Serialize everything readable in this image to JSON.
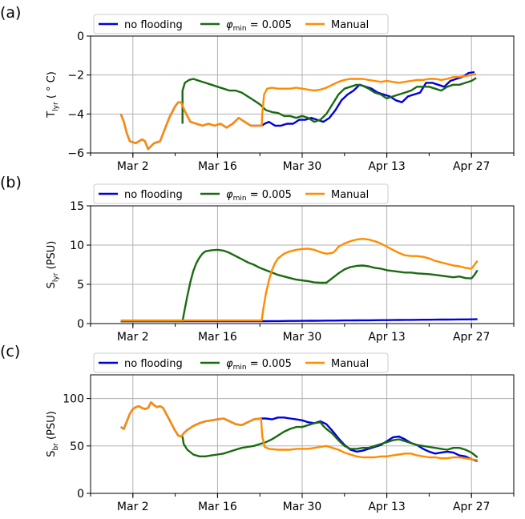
{
  "chart_data": [
    {
      "type": "line",
      "panel_label": "(a)",
      "ylabel_main": "T",
      "ylabel_sub": "lyr",
      "ylabel_tail": " ( ° C)",
      "ylim": [
        -6,
        0
      ],
      "yticks": [
        "−6",
        "−4",
        "−2",
        "0"
      ],
      "ytick_values": [
        -6,
        -4,
        -2,
        0
      ],
      "xlim": [
        "Feb 23",
        "May 4"
      ],
      "xtick_labels": [
        "Mar 2",
        "Mar 16",
        "Mar 30",
        "Apr 13",
        "Apr 27"
      ],
      "xtick_days": [
        7,
        21,
        35,
        49,
        63
      ],
      "grid": true,
      "legend": "top",
      "series": [
        {
          "name": "no flooding",
          "color": "#0000dd",
          "x": [
            1,
            2,
            3,
            4,
            5,
            6,
            7,
            8,
            9,
            10,
            11,
            12,
            13,
            14,
            15,
            16,
            17,
            18,
            19,
            20,
            21,
            22,
            23,
            24,
            25,
            26,
            27,
            28,
            29,
            30,
            31,
            32,
            33,
            34,
            35,
            36,
            37,
            38,
            39,
            40,
            41,
            42,
            43,
            44,
            45,
            46,
            47,
            48,
            49,
            50,
            51,
            52,
            53,
            54,
            55,
            56,
            57,
            58,
            59,
            60,
            61,
            62,
            63,
            64,
            65,
            66,
            67,
            68,
            69
          ],
          "y": [
            -4.0,
            -5.3,
            -5.5,
            -5.3,
            -5.8,
            -5.3,
            -4.8,
            -3.7,
            -3.4,
            -4.0,
            -4.4,
            -4.5,
            -4.6,
            -4.5,
            -4.5,
            -4.2,
            -4.3,
            -4.6,
            -4.6,
            -4.6,
            -4.5,
            -4.7,
            -4.6,
            -4.5,
            -4.4,
            -4.3,
            -4.3,
            -4.2,
            -4.5,
            -4.0,
            -3.5,
            -2.9,
            -2.6,
            -2.5,
            -2.6,
            -2.8,
            -2.9,
            -3.0,
            -3.2,
            -3.4,
            -3.3,
            -3.0,
            -2.9,
            -2.4,
            -2.3,
            -2.4,
            -2.5,
            -2.3,
            -2.1,
            -2.0,
            -1.9,
            -1.8,
            -1.8,
            -1.8,
            -1.8,
            -1.8,
            -1.8,
            -1.8,
            -1.8,
            -1.8,
            -1.8,
            -1.8,
            -1.8,
            -1.8,
            -1.8,
            -1.8,
            -1.8,
            -1.8,
            -1.8
          ]
        },
        {
          "name": "φmin = 0.005",
          "color": "#1a6b10",
          "x": [],
          "y": []
        },
        {
          "name": "Manual",
          "color": "#ff8c00",
          "x": [],
          "y": []
        }
      ]
    },
    {
      "type": "line",
      "panel_label": "(b)",
      "ylabel_main": "S",
      "ylabel_sub": "lyr",
      "ylabel_tail": " (PSU)",
      "ylim": [
        0,
        15
      ],
      "yticks": [
        "0",
        "5",
        "10",
        "15"
      ],
      "ytick_values": [
        0,
        5,
        10,
        15
      ],
      "xlim": [
        "Feb 23",
        "May 4"
      ],
      "xtick_labels": [
        "Mar 2",
        "Mar 16",
        "Mar 30",
        "Apr 13",
        "Apr 27"
      ],
      "xtick_days": [
        7,
        21,
        35,
        49,
        63
      ],
      "grid": true,
      "legend": "top",
      "series": [
        {
          "name": "no flooding",
          "color": "#0000dd",
          "x": [],
          "y": []
        },
        {
          "name": "φmin = 0.005",
          "color": "#1a6b10",
          "x": [],
          "y": []
        },
        {
          "name": "Manual",
          "color": "#ff8c00",
          "x": [],
          "y": []
        }
      ]
    },
    {
      "type": "line",
      "panel_label": "(c)",
      "ylabel_main": "S",
      "ylabel_sub": "br",
      "ylabel_tail": " (PSU)",
      "ylim": [
        0,
        125
      ],
      "yticks": [
        "0",
        "50",
        "100"
      ],
      "ytick_values": [
        0,
        50,
        100
      ],
      "xlim": [
        "Feb 23",
        "May 4"
      ],
      "xtick_labels": [
        "Mar 2",
        "Mar 16",
        "Mar 30",
        "Apr 13",
        "Apr 27"
      ],
      "xtick_days": [
        7,
        21,
        35,
        49,
        63
      ],
      "grid": true,
      "legend": "top",
      "series": [
        {
          "name": "no flooding",
          "color": "#0000dd",
          "x": [],
          "y": []
        },
        {
          "name": "φmin = 0.005",
          "color": "#1a6b10",
          "x": [],
          "y": []
        },
        {
          "name": "Manual",
          "color": "#ff8c00",
          "x": [],
          "y": []
        }
      ]
    }
  ]
}
